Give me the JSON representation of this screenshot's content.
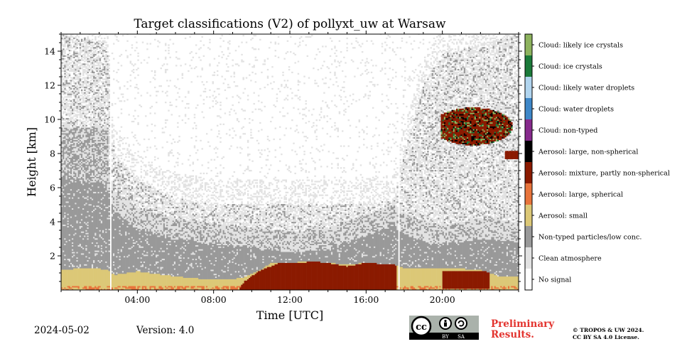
{
  "figure": {
    "title": "Target classifications (V2) of pollyxt_uw at Warsaw",
    "date": "2024-05-02",
    "version": "Version: 4.0",
    "preliminary_line1": "Preliminary",
    "preliminary_line2": "Results.",
    "copyright_line1": "© TROPOS & UW 2024.",
    "copyright_line2": "CC BY SA 4.0 License.",
    "license_badge": {
      "cc": "cc",
      "by": "BY",
      "sa": "SA"
    }
  },
  "chart_data": {
    "type": "heatmap",
    "title": "Target classifications (V2) of pollyxt_uw at Warsaw",
    "xlabel": "Time [UTC]",
    "ylabel": "Height [km]",
    "xlim": [
      0,
      24
    ],
    "ylim": [
      0,
      15
    ],
    "x_ticks": [
      4,
      8,
      12,
      16,
      20
    ],
    "x_tick_labels": [
      "04:00",
      "08:00",
      "12:00",
      "16:00",
      "20:00"
    ],
    "y_ticks": [
      2,
      4,
      6,
      8,
      10,
      12,
      14
    ],
    "y_tick_labels": [
      "2",
      "4",
      "6",
      "8",
      "10",
      "12",
      "14"
    ],
    "data_gaps_utc": [
      [
        2.55,
        2.65
      ],
      [
        17.65,
        17.8
      ]
    ],
    "classes": [
      {
        "label": "No signal",
        "color": "#ffffff"
      },
      {
        "label": "Clean atmosphere",
        "color": "#e2e2e2"
      },
      {
        "label": "Non-typed particles/low conc.",
        "color": "#999999"
      },
      {
        "label": "Aerosol: small",
        "color": "#dcc877"
      },
      {
        "label": "Aerosol: large, spherical",
        "color": "#e8743b"
      },
      {
        "label": "Aerosol: mixture, partly non-spherical",
        "color": "#8b1a00"
      },
      {
        "label": "Aerosol: large, non-spherical",
        "color": "#000000"
      },
      {
        "label": "Cloud: non-typed",
        "color": "#862a8c"
      },
      {
        "label": "Cloud: water droplets",
        "color": "#3e87c8"
      },
      {
        "label": "Cloud: likely water droplets",
        "color": "#b1d5ef"
      },
      {
        "label": "Cloud: ice crystals",
        "color": "#1b7a3a"
      },
      {
        "label": "Cloud: likely ice crystals",
        "color": "#8db35e"
      }
    ]
  }
}
